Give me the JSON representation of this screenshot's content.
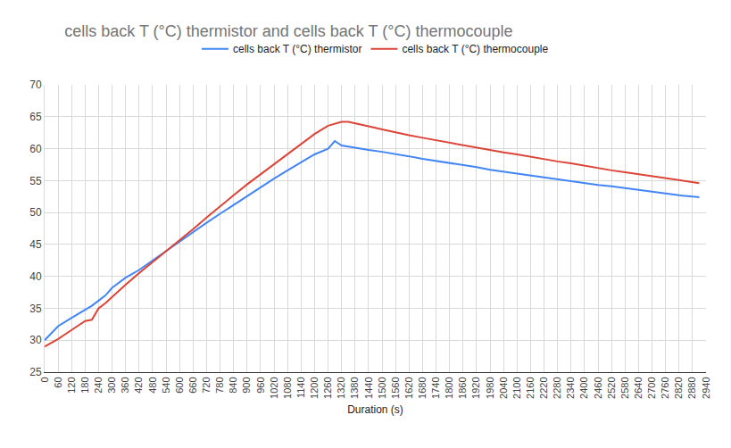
{
  "chart_data": {
    "type": "line",
    "title": "cells back T (°C) thermistor and cells back T (°C) thermocouple",
    "x_label": "Duration (s)",
    "x": [
      0,
      60,
      120,
      180,
      210,
      240,
      270,
      300,
      360,
      420,
      480,
      540,
      600,
      660,
      720,
      780,
      840,
      900,
      960,
      1020,
      1080,
      1140,
      1200,
      1260,
      1290,
      1320,
      1350,
      1380,
      1440,
      1500,
      1560,
      1620,
      1680,
      1740,
      1800,
      1860,
      1920,
      1980,
      2040,
      2100,
      2160,
      2220,
      2280,
      2340,
      2400,
      2460,
      2520,
      2580,
      2640,
      2700,
      2760,
      2820,
      2880,
      2910
    ],
    "series": [
      {
        "name": "cells back T (°C) thermistor",
        "color": "#4285f4",
        "values": [
          30,
          32.2,
          33.5,
          34.8,
          35.4,
          36.2,
          37,
          38.2,
          39.8,
          41,
          42.5,
          44,
          45.5,
          46.9,
          48.4,
          49.8,
          51.2,
          52.6,
          54,
          55.3,
          56.6,
          57.8,
          59.1,
          60,
          61.2,
          60.5,
          60.3,
          60.1,
          59.8,
          59.5,
          59.2,
          58.8,
          58.4,
          58.1,
          57.8,
          57.5,
          57.1,
          56.7,
          56.4,
          56.1,
          55.7,
          55.4,
          55.1,
          54.8,
          54.6,
          54.3,
          54.1,
          53.8,
          53.5,
          53.3,
          53,
          52.7,
          52.5,
          52.4
        ]
      },
      {
        "name": "cells back T (°C) thermocouple",
        "color": "#db4437",
        "values": [
          29,
          30.2,
          31.6,
          33,
          33.2,
          35,
          35.8,
          36.8,
          38.7,
          40.5,
          42.2,
          43.9,
          45.6,
          47.4,
          49.2,
          51,
          52.7,
          54.4,
          56,
          57.6,
          59.2,
          60.8,
          62.3,
          63.6,
          63.9,
          64.2,
          64.2,
          64,
          63.5,
          63,
          62.5,
          62.1,
          61.7,
          61.3,
          60.9,
          60.5,
          60.2,
          59.8,
          59.4,
          59.1,
          58.7,
          58.4,
          58,
          57.7,
          57.3,
          57,
          56.6,
          56.3,
          56,
          55.6,
          55.3,
          55,
          54.7,
          54.6
        ]
      }
    ],
    "xlim": [
      0,
      2940
    ],
    "xticks": [
      0,
      60,
      120,
      180,
      240,
      300,
      360,
      420,
      480,
      540,
      600,
      660,
      720,
      780,
      840,
      900,
      960,
      1020,
      1080,
      1140,
      1200,
      1260,
      1320,
      1380,
      1440,
      1500,
      1560,
      1620,
      1680,
      1740,
      1800,
      1860,
      1920,
      1980,
      2040,
      2100,
      2160,
      2220,
      2280,
      2340,
      2400,
      2460,
      2520,
      2580,
      2640,
      2700,
      2760,
      2820,
      2880,
      2940
    ],
    "ylim": [
      25,
      70
    ],
    "yticks": [
      25,
      30,
      35,
      40,
      45,
      50,
      55,
      60,
      65,
      70
    ],
    "grid": true,
    "legend": "top"
  }
}
